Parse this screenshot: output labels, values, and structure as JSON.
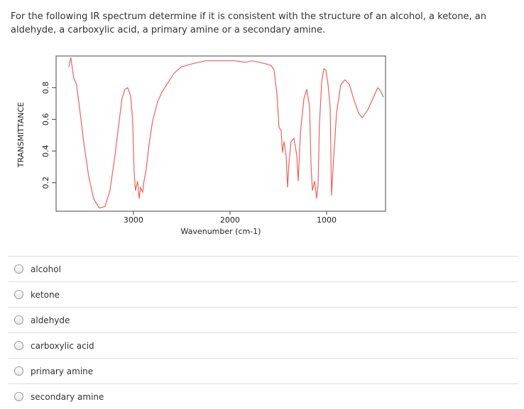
{
  "question": "For the following IR spectrum determine if it is consistent with the structure of an alcohol, a ketone, an aldehyde, a carboxylic acid, a primary amine or a secondary amine.",
  "chart_data": {
    "type": "line",
    "xlabel": "Wavenumber (cm-1)",
    "ylabel": "TRANSMITTANCE",
    "xlim": [
      3800,
      390
    ],
    "ylim": [
      0.02,
      1.0
    ],
    "xticks": [
      3000,
      2000,
      1000
    ],
    "yticks": [
      0.2,
      0.4,
      0.6,
      0.8
    ],
    "series": [
      {
        "color": "#f0605a",
        "x": [
          3669,
          3647,
          3618,
          3588,
          3559,
          3515,
          3463,
          3412,
          3353,
          3294,
          3243,
          3191,
          3147,
          3118,
          3088,
          3059,
          3029,
          3007,
          2993,
          2978,
          2956,
          2941,
          2926,
          2904,
          2890,
          2868,
          2838,
          2801,
          2750,
          2706,
          2654,
          2581,
          2507,
          2397,
          2250,
          2103,
          1956,
          1846,
          1772,
          1699,
          1625,
          1574,
          1544,
          1515,
          1493,
          1471,
          1456,
          1441,
          1419,
          1404,
          1390,
          1368,
          1338,
          1309,
          1294,
          1272,
          1235,
          1206,
          1176,
          1162,
          1147,
          1125,
          1103,
          1088,
          1074,
          1051,
          1029,
          1007,
          985,
          963,
          949,
          926,
          897,
          853,
          809,
          765,
          721,
          669,
          632,
          574,
          522,
          471,
          441,
          412
        ],
        "values": [
          0.93,
          0.99,
          0.86,
          0.82,
          0.68,
          0.46,
          0.24,
          0.1,
          0.04,
          0.05,
          0.15,
          0.37,
          0.59,
          0.73,
          0.79,
          0.8,
          0.75,
          0.59,
          0.28,
          0.15,
          0.21,
          0.1,
          0.17,
          0.14,
          0.21,
          0.28,
          0.44,
          0.59,
          0.71,
          0.77,
          0.82,
          0.89,
          0.93,
          0.95,
          0.97,
          0.97,
          0.97,
          0.96,
          0.97,
          0.96,
          0.95,
          0.94,
          0.91,
          0.77,
          0.55,
          0.53,
          0.39,
          0.46,
          0.37,
          0.17,
          0.32,
          0.46,
          0.48,
          0.37,
          0.21,
          0.51,
          0.73,
          0.79,
          0.68,
          0.32,
          0.15,
          0.21,
          0.1,
          0.19,
          0.57,
          0.84,
          0.92,
          0.91,
          0.82,
          0.68,
          0.12,
          0.37,
          0.64,
          0.82,
          0.85,
          0.82,
          0.73,
          0.64,
          0.61,
          0.66,
          0.73,
          0.8,
          0.78,
          0.74
        ]
      }
    ]
  },
  "options": [
    "alcohol",
    "ketone",
    "aldehyde",
    "carboxylic acid",
    "primary amine",
    "secondary amine"
  ]
}
